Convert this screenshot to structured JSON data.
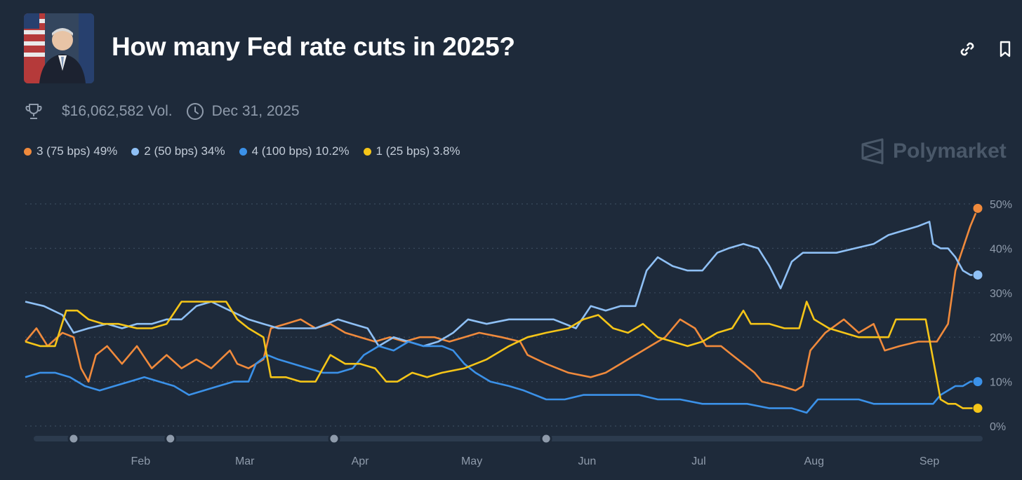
{
  "header": {
    "title": "How many Fed rate cuts in 2025?",
    "link_icon": "link-icon",
    "bookmark_icon": "bookmark-icon"
  },
  "meta": {
    "volume": "$16,062,582 Vol.",
    "end_date": "Dec 31, 2025",
    "trophy_icon": "trophy-icon",
    "clock_icon": "clock-icon"
  },
  "legend": [
    {
      "label": "3 (75 bps) 49%",
      "color": "#f08a3c"
    },
    {
      "label": "2 (50 bps) 34%",
      "color": "#8fc0f5"
    },
    {
      "label": "4 (100 bps) 10.2%",
      "color": "#3b91e8"
    },
    {
      "label": "1 (25 bps) 3.8%",
      "color": "#f5c518"
    }
  ],
  "brand": {
    "name": "Polymarket"
  },
  "chart_data": {
    "type": "line",
    "title": "How many Fed rate cuts in 2025?",
    "x_unit": "days since Jan 1, 2025",
    "x_range": [
      0,
      256
    ],
    "ylim": [
      0,
      50
    ],
    "y_ticks": [
      "0%",
      "10%",
      "20%",
      "30%",
      "40%",
      "50%"
    ],
    "x_tick_labels": [
      "Feb",
      "Mar",
      "Apr",
      "May",
      "Jun",
      "Jul",
      "Aug",
      "Sep"
    ],
    "x_tick_days": [
      31,
      59,
      90,
      120,
      151,
      181,
      212,
      243
    ],
    "series": [
      {
        "name": "3 (75 bps)",
        "color": "#f08a3c",
        "final": "49%",
        "points": [
          [
            0,
            19
          ],
          [
            3,
            22
          ],
          [
            6,
            18
          ],
          [
            10,
            21
          ],
          [
            13,
            20
          ],
          [
            15,
            13
          ],
          [
            17,
            10
          ],
          [
            19,
            16
          ],
          [
            22,
            18
          ],
          [
            26,
            14
          ],
          [
            30,
            18
          ],
          [
            34,
            13
          ],
          [
            38,
            16
          ],
          [
            42,
            13
          ],
          [
            46,
            15
          ],
          [
            50,
            13
          ],
          [
            55,
            17
          ],
          [
            57,
            14
          ],
          [
            60,
            13
          ],
          [
            64,
            15
          ],
          [
            66,
            22
          ],
          [
            70,
            23
          ],
          [
            74,
            24
          ],
          [
            78,
            22
          ],
          [
            82,
            23
          ],
          [
            86,
            21
          ],
          [
            90,
            20
          ],
          [
            94,
            19
          ],
          [
            98,
            20
          ],
          [
            102,
            19
          ],
          [
            106,
            20
          ],
          [
            110,
            20
          ],
          [
            114,
            19
          ],
          [
            118,
            20
          ],
          [
            122,
            21
          ],
          [
            128,
            20
          ],
          [
            133,
            19
          ],
          [
            135,
            16
          ],
          [
            140,
            14
          ],
          [
            146,
            12
          ],
          [
            152,
            11
          ],
          [
            156,
            12
          ],
          [
            160,
            14
          ],
          [
            164,
            16
          ],
          [
            168,
            18
          ],
          [
            172,
            20
          ],
          [
            176,
            24
          ],
          [
            180,
            22
          ],
          [
            183,
            18
          ],
          [
            187,
            18
          ],
          [
            190,
            16
          ],
          [
            193,
            14
          ],
          [
            196,
            12
          ],
          [
            198,
            10
          ],
          [
            203,
            9
          ],
          [
            207,
            8
          ],
          [
            209,
            9
          ],
          [
            211,
            17
          ],
          [
            215,
            21
          ],
          [
            220,
            24
          ],
          [
            224,
            21
          ],
          [
            228,
            23
          ],
          [
            231,
            17
          ],
          [
            235,
            18
          ],
          [
            240,
            19
          ],
          [
            245,
            19
          ],
          [
            248,
            23
          ],
          [
            250,
            35
          ],
          [
            252,
            40
          ],
          [
            254,
            45
          ],
          [
            256,
            49
          ]
        ]
      },
      {
        "name": "2 (50 bps)",
        "color": "#8fc0f5",
        "final": "34%",
        "points": [
          [
            0,
            28
          ],
          [
            5,
            27
          ],
          [
            10,
            25
          ],
          [
            13,
            21
          ],
          [
            17,
            22
          ],
          [
            22,
            23
          ],
          [
            26,
            22
          ],
          [
            30,
            23
          ],
          [
            34,
            23
          ],
          [
            38,
            24
          ],
          [
            42,
            24
          ],
          [
            46,
            27
          ],
          [
            50,
            28
          ],
          [
            55,
            26
          ],
          [
            60,
            24
          ],
          [
            64,
            23
          ],
          [
            68,
            22
          ],
          [
            72,
            22
          ],
          [
            78,
            22
          ],
          [
            84,
            24
          ],
          [
            88,
            23
          ],
          [
            92,
            22
          ],
          [
            95,
            18
          ],
          [
            99,
            20
          ],
          [
            103,
            19
          ],
          [
            107,
            18
          ],
          [
            111,
            19
          ],
          [
            115,
            21
          ],
          [
            119,
            24
          ],
          [
            124,
            23
          ],
          [
            130,
            24
          ],
          [
            136,
            24
          ],
          [
            142,
            24
          ],
          [
            148,
            22
          ],
          [
            152,
            27
          ],
          [
            156,
            26
          ],
          [
            160,
            27
          ],
          [
            164,
            27
          ],
          [
            167,
            35
          ],
          [
            170,
            38
          ],
          [
            174,
            36
          ],
          [
            178,
            35
          ],
          [
            182,
            35
          ],
          [
            186,
            39
          ],
          [
            189,
            40
          ],
          [
            193,
            41
          ],
          [
            197,
            40
          ],
          [
            200,
            36
          ],
          [
            203,
            31
          ],
          [
            206,
            37
          ],
          [
            209,
            39
          ],
          [
            213,
            39
          ],
          [
            218,
            39
          ],
          [
            223,
            40
          ],
          [
            228,
            41
          ],
          [
            232,
            43
          ],
          [
            236,
            44
          ],
          [
            240,
            45
          ],
          [
            243,
            46
          ],
          [
            244,
            41
          ],
          [
            246,
            40
          ],
          [
            248,
            40
          ],
          [
            250,
            38
          ],
          [
            252,
            35
          ],
          [
            254,
            34
          ],
          [
            256,
            34
          ]
        ]
      },
      {
        "name": "4 (100 bps)",
        "color": "#3b91e8",
        "final": "10.2%",
        "points": [
          [
            0,
            11
          ],
          [
            4,
            12
          ],
          [
            8,
            12
          ],
          [
            12,
            11
          ],
          [
            16,
            9
          ],
          [
            20,
            8
          ],
          [
            24,
            9
          ],
          [
            28,
            10
          ],
          [
            32,
            11
          ],
          [
            36,
            10
          ],
          [
            40,
            9
          ],
          [
            44,
            7
          ],
          [
            48,
            8
          ],
          [
            52,
            9
          ],
          [
            56,
            10
          ],
          [
            60,
            10
          ],
          [
            62,
            14
          ],
          [
            65,
            16
          ],
          [
            68,
            15
          ],
          [
            72,
            14
          ],
          [
            76,
            13
          ],
          [
            80,
            12
          ],
          [
            84,
            12
          ],
          [
            88,
            13
          ],
          [
            91,
            16
          ],
          [
            95,
            18
          ],
          [
            99,
            17
          ],
          [
            103,
            19
          ],
          [
            107,
            18
          ],
          [
            112,
            18
          ],
          [
            115,
            17
          ],
          [
            118,
            14
          ],
          [
            121,
            12
          ],
          [
            125,
            10
          ],
          [
            130,
            9
          ],
          [
            134,
            8
          ],
          [
            140,
            6
          ],
          [
            145,
            6
          ],
          [
            150,
            7
          ],
          [
            155,
            7
          ],
          [
            160,
            7
          ],
          [
            165,
            7
          ],
          [
            170,
            6
          ],
          [
            176,
            6
          ],
          [
            182,
            5
          ],
          [
            188,
            5
          ],
          [
            194,
            5
          ],
          [
            200,
            4
          ],
          [
            206,
            4
          ],
          [
            210,
            3
          ],
          [
            213,
            6
          ],
          [
            218,
            6
          ],
          [
            224,
            6
          ],
          [
            228,
            5
          ],
          [
            232,
            5
          ],
          [
            236,
            5
          ],
          [
            240,
            5
          ],
          [
            244,
            5
          ],
          [
            246,
            7
          ],
          [
            248,
            8
          ],
          [
            250,
            9
          ],
          [
            252,
            9
          ],
          [
            254,
            10
          ],
          [
            256,
            10
          ]
        ]
      },
      {
        "name": "1 (25 bps)",
        "color": "#f5c518",
        "final": "3.8%",
        "points": [
          [
            0,
            19
          ],
          [
            4,
            18
          ],
          [
            8,
            18
          ],
          [
            11,
            26
          ],
          [
            14,
            26
          ],
          [
            17,
            24
          ],
          [
            21,
            23
          ],
          [
            25,
            23
          ],
          [
            30,
            22
          ],
          [
            34,
            22
          ],
          [
            38,
            23
          ],
          [
            42,
            28
          ],
          [
            46,
            28
          ],
          [
            50,
            28
          ],
          [
            54,
            28
          ],
          [
            57,
            24
          ],
          [
            60,
            22
          ],
          [
            64,
            20
          ],
          [
            66,
            11
          ],
          [
            70,
            11
          ],
          [
            74,
            10
          ],
          [
            78,
            10
          ],
          [
            82,
            16
          ],
          [
            86,
            14
          ],
          [
            90,
            14
          ],
          [
            94,
            13
          ],
          [
            97,
            10
          ],
          [
            100,
            10
          ],
          [
            104,
            12
          ],
          [
            108,
            11
          ],
          [
            112,
            12
          ],
          [
            118,
            13
          ],
          [
            124,
            15
          ],
          [
            130,
            18
          ],
          [
            135,
            20
          ],
          [
            140,
            21
          ],
          [
            146,
            22
          ],
          [
            150,
            24
          ],
          [
            154,
            25
          ],
          [
            158,
            22
          ],
          [
            162,
            21
          ],
          [
            166,
            23
          ],
          [
            170,
            20
          ],
          [
            174,
            19
          ],
          [
            178,
            18
          ],
          [
            182,
            19
          ],
          [
            186,
            21
          ],
          [
            190,
            22
          ],
          [
            193,
            26
          ],
          [
            195,
            23
          ],
          [
            200,
            23
          ],
          [
            204,
            22
          ],
          [
            208,
            22
          ],
          [
            210,
            28
          ],
          [
            212,
            24
          ],
          [
            216,
            22
          ],
          [
            220,
            21
          ],
          [
            224,
            20
          ],
          [
            228,
            20
          ],
          [
            232,
            20
          ],
          [
            234,
            24
          ],
          [
            238,
            24
          ],
          [
            242,
            24
          ],
          [
            244,
            15
          ],
          [
            246,
            6
          ],
          [
            248,
            5
          ],
          [
            250,
            5
          ],
          [
            252,
            4
          ],
          [
            254,
            4
          ],
          [
            256,
            4
          ]
        ]
      }
    ],
    "slider_marker_days": [
      13,
      39,
      83,
      140
    ]
  }
}
